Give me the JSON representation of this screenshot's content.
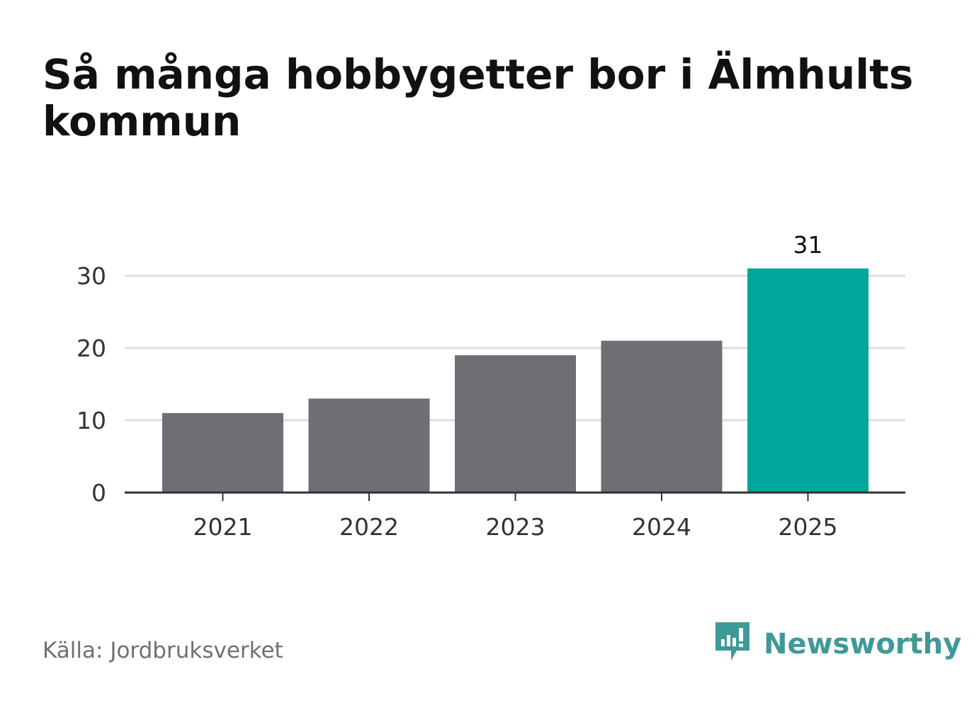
{
  "title": "Så många hobbygetter bor i Älmhults kommun",
  "source": {
    "label": "Källa:",
    "value": "Jordbruksverket"
  },
  "brand": {
    "name": "Newsworthy",
    "logo_icon": "newsworthy-logo-icon",
    "color": "#3f9a97"
  },
  "colors": {
    "bar": "#6f6e74",
    "highlight": "#00a59b",
    "grid": "#dddddd",
    "axis": "#333333"
  },
  "chart_data": {
    "type": "bar",
    "categories": [
      "2021",
      "2022",
      "2023",
      "2024",
      "2025"
    ],
    "values": [
      11,
      13,
      19,
      21,
      31
    ],
    "highlight_index": 4,
    "data_labels": [
      {
        "index": 4,
        "text": "31"
      }
    ],
    "title": "Så många hobbygetter bor i Älmhults kommun",
    "xlabel": "",
    "ylabel": "",
    "ylim": [
      0,
      30
    ],
    "yticks": [
      0,
      10,
      20,
      30
    ],
    "grid": true,
    "legend": "none"
  }
}
